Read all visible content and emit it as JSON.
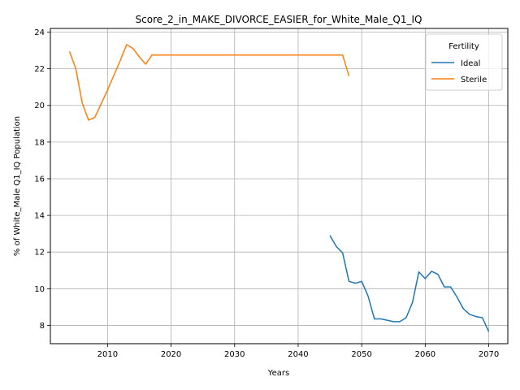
{
  "chart_data": {
    "type": "line",
    "title": "Score_2_in_MAKE_DIVORCE_EASIER_for_White_Male_Q1_IQ",
    "xlabel": "Years",
    "ylabel": "% of White_Male Q1_IQ Population",
    "xlim": [
      2001,
      2073
    ],
    "ylim": [
      7.0,
      24.2
    ],
    "xticks": [
      2010,
      2020,
      2030,
      2040,
      2050,
      2060,
      2070
    ],
    "yticks": [
      8,
      10,
      12,
      14,
      16,
      18,
      20,
      22,
      24
    ],
    "grid": true,
    "legend": {
      "title": "Fertility",
      "position": "top-right"
    },
    "series": [
      {
        "name": "Ideal",
        "color": "#1f77b4",
        "x": [
          2045,
          2046,
          2047,
          2048,
          2049,
          2050,
          2051,
          2052,
          2053,
          2054,
          2055,
          2056,
          2057,
          2058,
          2059,
          2060,
          2061,
          2062,
          2063,
          2064,
          2065,
          2066,
          2067,
          2068,
          2069,
          2070
        ],
        "y": [
          12.9,
          12.3,
          11.95,
          10.4,
          10.3,
          10.4,
          9.6,
          8.35,
          8.35,
          8.28,
          8.2,
          8.2,
          8.42,
          9.25,
          10.92,
          10.55,
          10.95,
          10.78,
          10.1,
          10.1,
          9.55,
          8.9,
          8.6,
          8.48,
          8.42,
          7.65
        ]
      },
      {
        "name": "Sterile",
        "color": "#ff7f0e",
        "x": [
          2004,
          2005,
          2006,
          2007,
          2008,
          2009,
          2010,
          2011,
          2012,
          2013,
          2014,
          2015,
          2016,
          2017,
          2018,
          2020,
          2025,
          2030,
          2035,
          2040,
          2045,
          2046,
          2047,
          2048
        ],
        "y": [
          22.95,
          22.0,
          20.15,
          19.2,
          19.35,
          20.1,
          20.85,
          21.65,
          22.45,
          23.32,
          23.1,
          22.65,
          22.25,
          22.75,
          22.75,
          22.75,
          22.75,
          22.75,
          22.75,
          22.75,
          22.75,
          22.75,
          22.75,
          21.6
        ]
      }
    ]
  }
}
